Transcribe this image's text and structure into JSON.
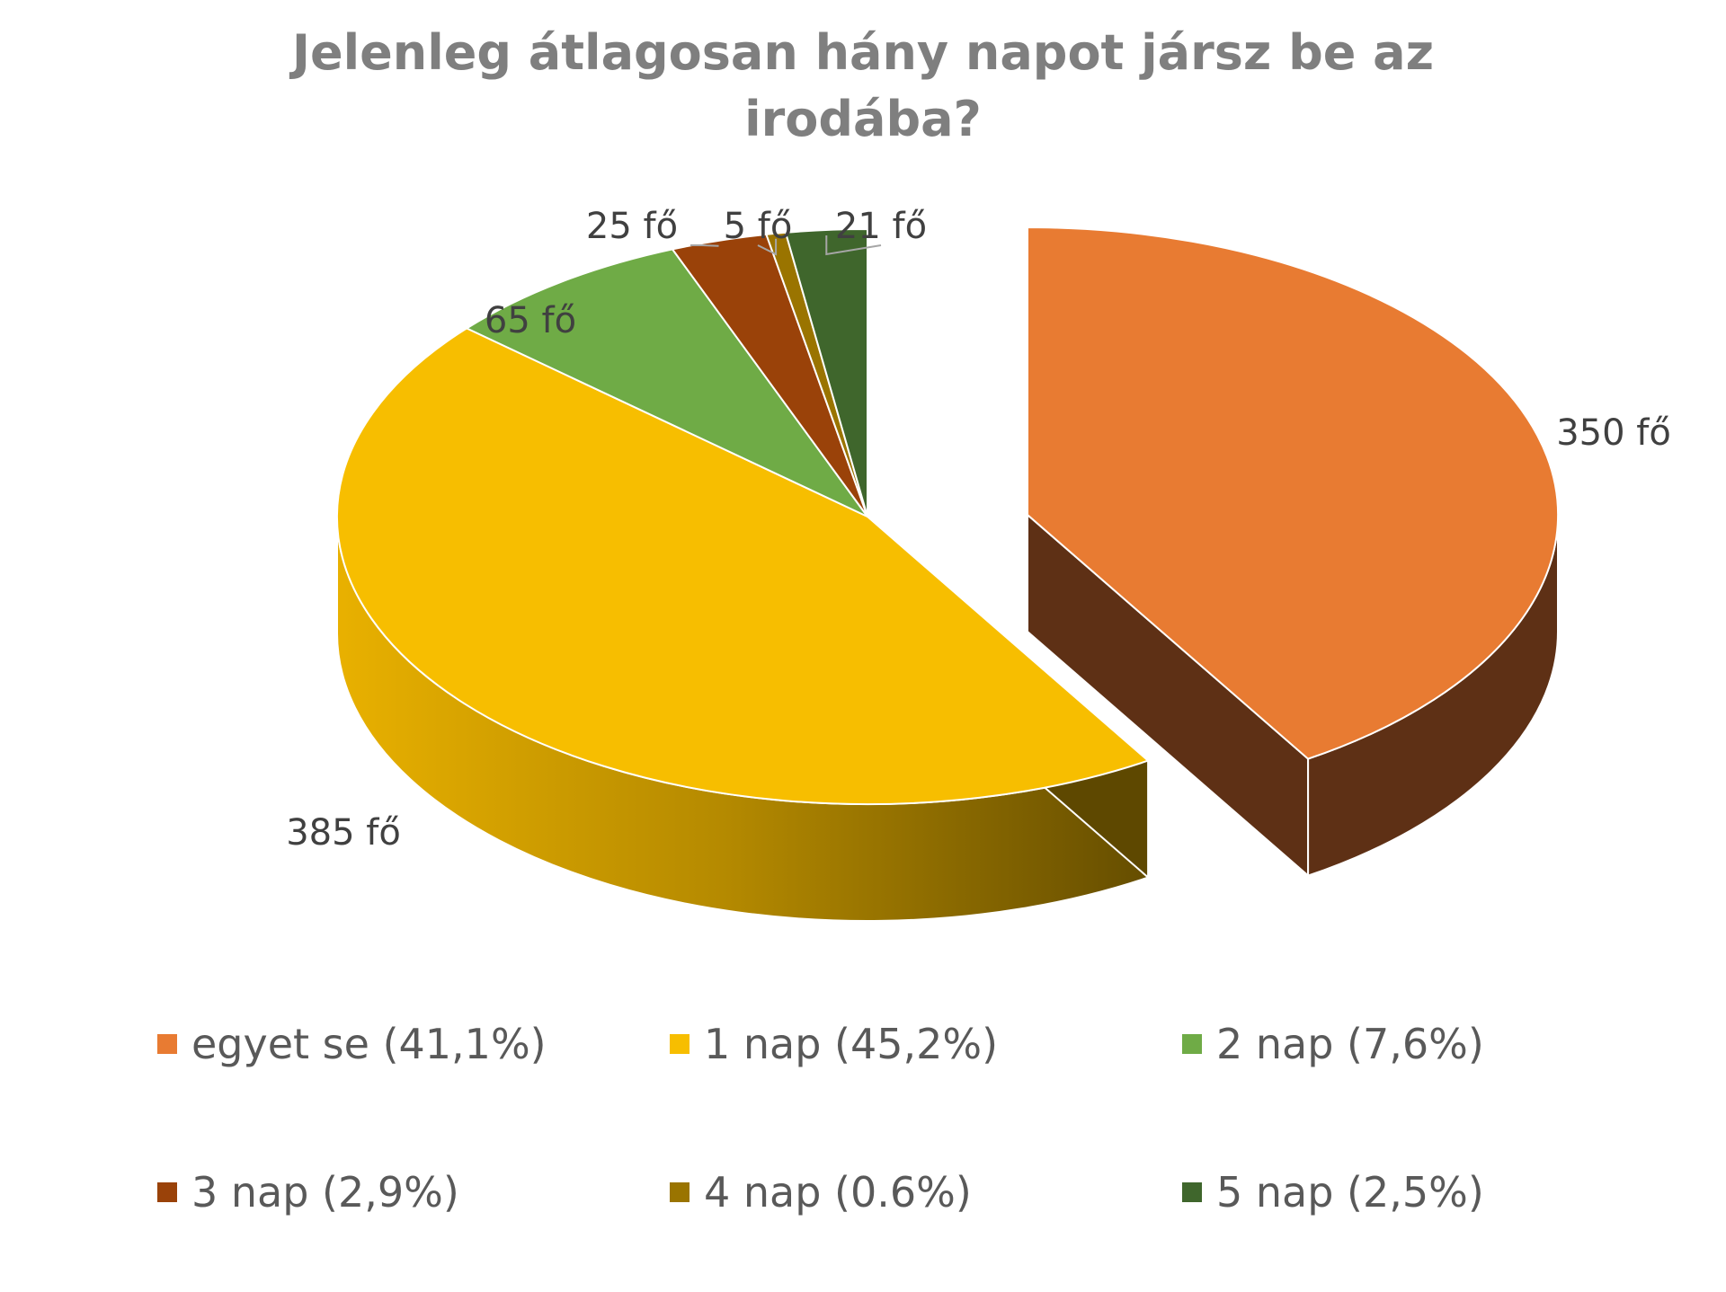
{
  "chart_data": {
    "type": "pie",
    "title": "Jelenleg átlagosan hány napot jársz be az irodába?",
    "title_lines": [
      "Jelenleg átlagosan hány napot jársz be az",
      "irodába?"
    ],
    "style": "3d-exploded",
    "legend_position": "bottom",
    "slices": [
      {
        "legend": "egyet se (41,1%)",
        "value": 350,
        "data_label": "350 fő",
        "color": "#E87B32",
        "side_color": "#5E3015",
        "exploded": true
      },
      {
        "legend": "1 nap (45,2%)",
        "value": 385,
        "data_label": "385 fő",
        "color": "#F7BE00",
        "side_color": "#A88200",
        "exploded": false
      },
      {
        "legend": "2 nap (7,6%)",
        "value": 65,
        "data_label": "65 fő",
        "color": "#6FAB46",
        "side_color": "#3F6228",
        "exploded": false
      },
      {
        "legend": "3 nap (2,9%)",
        "value": 25,
        "data_label": "25 fő",
        "color": "#9A4209",
        "side_color": "#5A2605",
        "exploded": false
      },
      {
        "legend": "4 nap (0.6%)",
        "value": 5,
        "data_label": "5 fő",
        "color": "#9A7400",
        "side_color": "#5A4400",
        "exploded": false
      },
      {
        "legend": "5 nap (2,5%)",
        "value": 21,
        "data_label": "21 fő",
        "color": "#3F662C",
        "side_color": "#253D1A",
        "exploded": false
      }
    ]
  }
}
